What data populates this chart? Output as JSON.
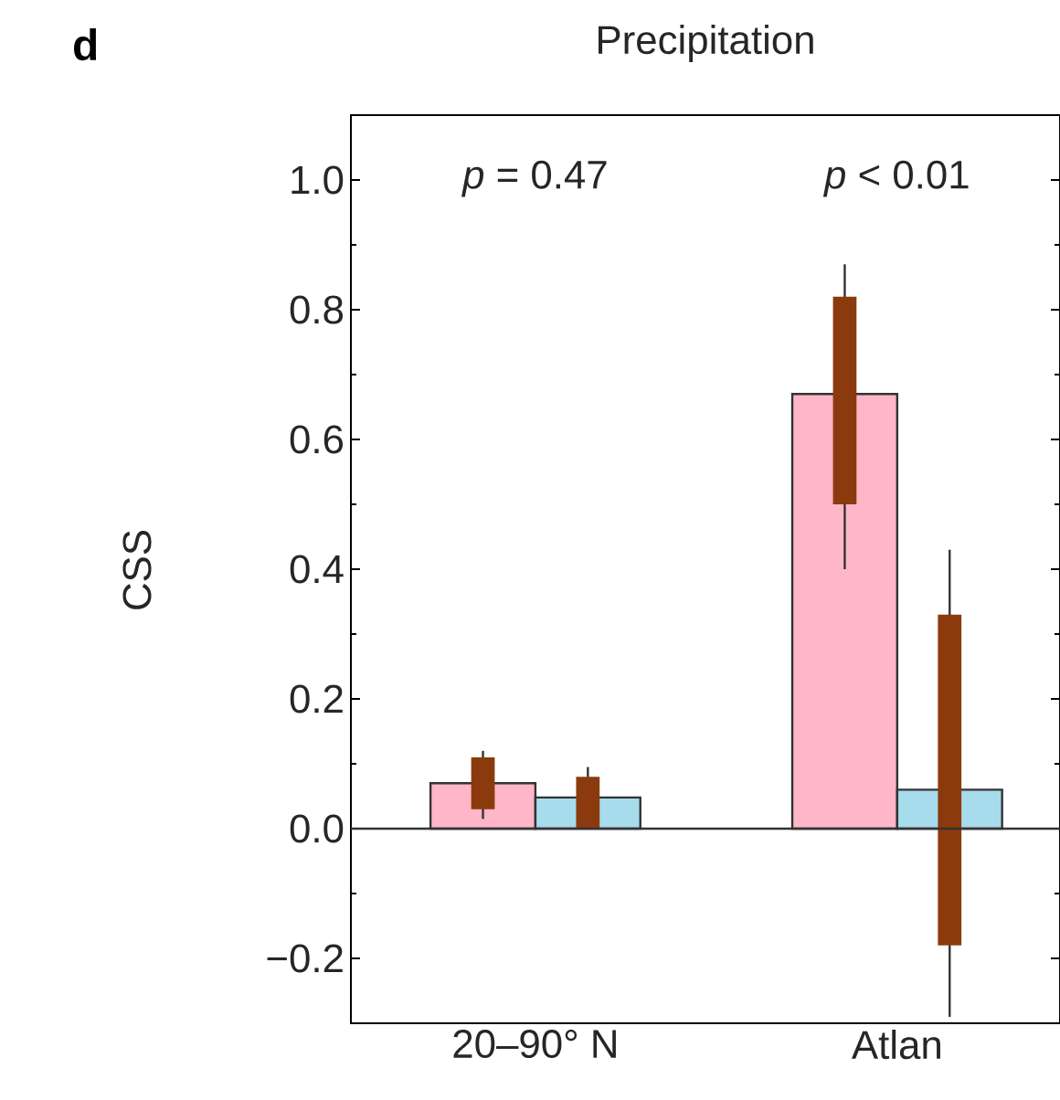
{
  "chart_data": {
    "type": "bar",
    "title": "Precipitation",
    "ylabel": "CSS",
    "categories": [
      "20–90° N",
      "Atlan"
    ],
    "series": [
      {
        "color": "#ffb6c8",
        "values": [
          0.07,
          0.67
        ],
        "errors": [
          [
            0.015,
            0.12
          ],
          [
            0.4,
            0.87
          ]
        ]
      },
      {
        "color": "#a6dcec",
        "values": [
          0.048,
          0.06
        ],
        "errors": [
          [
            0.0,
            0.095
          ],
          [
            -0.29,
            0.43
          ]
        ]
      },
      {
        "color": "#8b3a0e",
        "base": [
          0.03,
          0.5
        ],
        "values": [
          0.08,
          0.32
        ]
      },
      {
        "color": "#8b3a0e",
        "base": [
          0.0,
          -0.18
        ],
        "values": [
          0.08,
          0.51
        ]
      }
    ],
    "ylim": [
      -0.3,
      1.1
    ],
    "yticks": [
      {
        "value": -0.2,
        "label": "−0.2"
      },
      {
        "value": 0.0,
        "label": "0.0"
      },
      {
        "value": 0.2,
        "label": "0.2"
      },
      {
        "value": 0.4,
        "label": "0.4"
      },
      {
        "value": 0.6,
        "label": "0.6"
      },
      {
        "value": 0.8,
        "label": "0.8"
      },
      {
        "value": 1.0,
        "label": "1.0"
      }
    ],
    "ref_lines": [
      {
        "axis": "y",
        "value": 0
      }
    ],
    "annotations": [
      "d",
      "*p* = 0.47",
      "*p* < 0.01"
    ]
  }
}
